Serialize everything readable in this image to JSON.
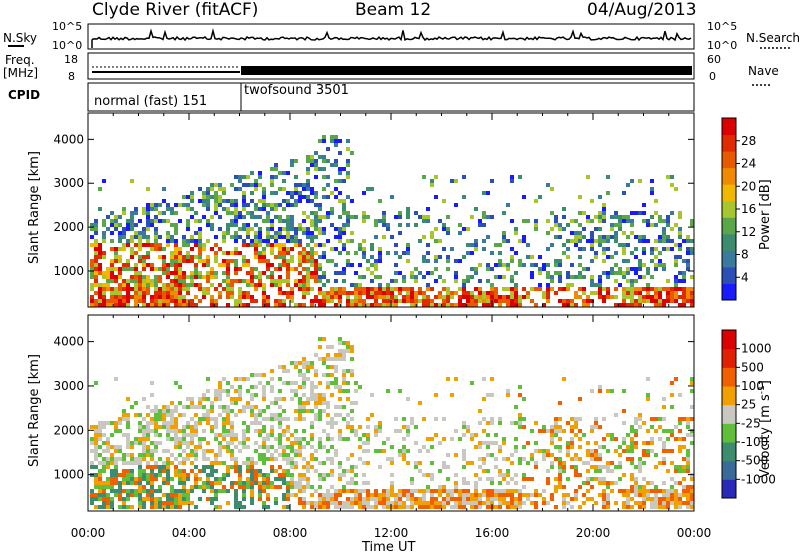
{
  "header": {
    "station": "Clyde River (fitACF)",
    "beam": "Beam 12",
    "date": "04/Aug/2013"
  },
  "noise_panel": {
    "left_label": "N.Sky",
    "right_label": "N.Search",
    "left_ticks": [
      "10^5",
      "10^0"
    ],
    "right_ticks": [
      "10^5",
      "10^0"
    ]
  },
  "freq_panel": {
    "left_label_line1": "Freq.",
    "left_label_line2": "[MHz]",
    "right_label": "Nave",
    "left_ticks": [
      "18",
      "8"
    ],
    "right_ticks": [
      "60",
      "0"
    ]
  },
  "cpid_panel": {
    "label": "CPID",
    "modes": [
      {
        "name": "normal (fast) 151",
        "start_hour": 0,
        "end_hour": 6
      },
      {
        "name": "twofsound 3501",
        "start_hour": 6,
        "end_hour": 24
      }
    ]
  },
  "time_axis": {
    "label": "Time UT",
    "ticks": [
      "00:00",
      "04:00",
      "08:00",
      "12:00",
      "16:00",
      "20:00",
      "00:00"
    ]
  },
  "chart_data": [
    {
      "type": "heatmap",
      "title": "",
      "xlabel": "Time UT",
      "ylabel": "Slant Range [km]",
      "x_range_hours": [
        0,
        24
      ],
      "ylim": [
        180,
        4600
      ],
      "y_ticks": [
        "1000",
        "2000",
        "3000",
        "4000"
      ],
      "colorbar": {
        "label": "Power [dB]",
        "ticks": [
          "28",
          "24",
          "20",
          "16",
          "12",
          "8",
          "4"
        ],
        "colors": [
          "#1a1aff",
          "#2b4fb5",
          "#3a7a9c",
          "#3c8c6e",
          "#5aa64a",
          "#a7c62e",
          "#f0b800",
          "#f08a00",
          "#e85a00",
          "#e02a00",
          "#dd0000"
        ]
      }
    },
    {
      "type": "heatmap",
      "title": "",
      "xlabel": "Time UT",
      "ylabel": "Slant Range [km]",
      "x_range_hours": [
        0,
        24
      ],
      "ylim": [
        180,
        4600
      ],
      "y_ticks": [
        "1000",
        "2000",
        "3000",
        "4000"
      ],
      "colorbar": {
        "label": "Velocity [m s^-1]",
        "ticks": [
          "1000",
          "500",
          "100",
          "25",
          "-25",
          "-100",
          "-500",
          "-1000"
        ],
        "colors": [
          "#2a2ab8",
          "#3a6a9a",
          "#3c8c6e",
          "#5fbf3a",
          "#c8c8c0",
          "#f0a000",
          "#f06000",
          "#e02000",
          "#dd0000"
        ]
      }
    }
  ]
}
